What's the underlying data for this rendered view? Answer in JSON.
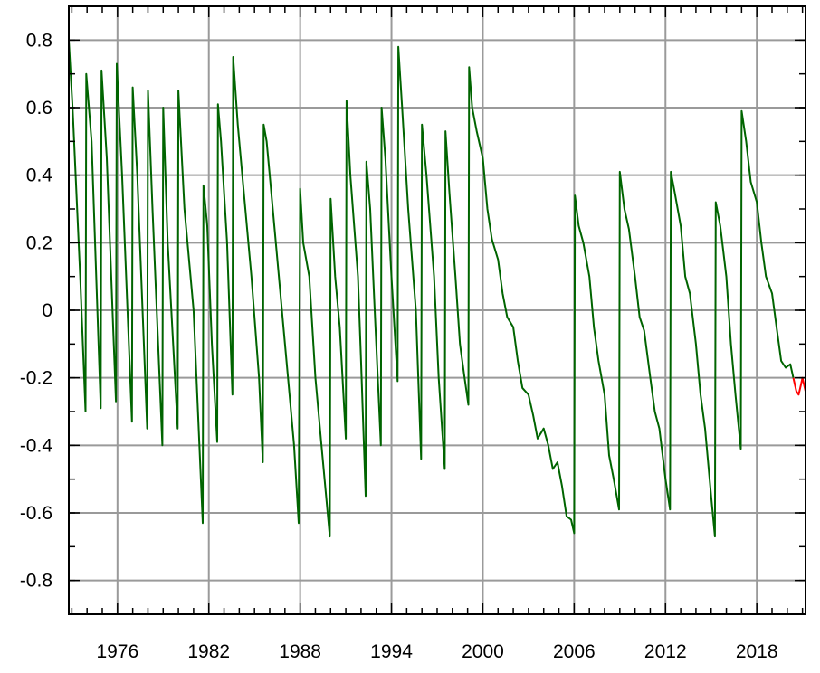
{
  "chart_data": {
    "type": "line",
    "title": "",
    "xlabel": "",
    "ylabel": "",
    "xlim": [
      1972.8,
      2021.2
    ],
    "ylim": [
      -0.9,
      0.9
    ],
    "x_ticks": [
      1976,
      1982,
      1988,
      1994,
      2000,
      2006,
      2012,
      2018
    ],
    "x_tick_labels": [
      "1976",
      "1982",
      "1988",
      "1994",
      "2000",
      "2006",
      "2012",
      "2018"
    ],
    "y_ticks": [
      0.8,
      0.6,
      0.4,
      0.2,
      0,
      -0.2,
      -0.4,
      -0.6,
      -0.8
    ],
    "y_tick_labels": [
      "0.8",
      "0.6",
      "0.4",
      "0.2",
      "0",
      "-0.2",
      "-0.4",
      "-0.6",
      "-0.8"
    ],
    "grid": true,
    "legend": "none",
    "series": [
      {
        "color": "#006400",
        "points": [
          [
            1972.8,
            0.8
          ],
          [
            1973.05,
            0.6
          ],
          [
            1973.55,
            0.1
          ],
          [
            1973.9,
            -0.3
          ],
          [
            1973.95,
            0.7
          ],
          [
            1974.3,
            0.5
          ],
          [
            1974.9,
            -0.29
          ],
          [
            1974.95,
            0.71
          ],
          [
            1975.3,
            0.45
          ],
          [
            1975.9,
            -0.27
          ],
          [
            1975.95,
            0.73
          ],
          [
            1976.3,
            0.4
          ],
          [
            1976.95,
            -0.33
          ],
          [
            1977.0,
            0.66
          ],
          [
            1977.3,
            0.4
          ],
          [
            1977.95,
            -0.35
          ],
          [
            1978.0,
            0.65
          ],
          [
            1978.3,
            0.3
          ],
          [
            1978.95,
            -0.4
          ],
          [
            1979.0,
            0.6
          ],
          [
            1979.3,
            0.2
          ],
          [
            1979.95,
            -0.35
          ],
          [
            1980.0,
            0.65
          ],
          [
            1980.4,
            0.3
          ],
          [
            1981.0,
            0.0
          ],
          [
            1981.6,
            -0.63
          ],
          [
            1981.65,
            0.37
          ],
          [
            1981.9,
            0.25
          ],
          [
            1982.2,
            -0.1
          ],
          [
            1982.55,
            -0.39
          ],
          [
            1982.6,
            0.61
          ],
          [
            1982.8,
            0.5
          ],
          [
            1983.2,
            0.2
          ],
          [
            1983.55,
            -0.25
          ],
          [
            1983.6,
            0.75
          ],
          [
            1983.9,
            0.55
          ],
          [
            1984.2,
            0.4
          ],
          [
            1984.8,
            0.1
          ],
          [
            1985.3,
            -0.2
          ],
          [
            1985.55,
            -0.45
          ],
          [
            1985.6,
            0.55
          ],
          [
            1985.8,
            0.5
          ],
          [
            1986.2,
            0.3
          ],
          [
            1986.8,
            0.0
          ],
          [
            1987.3,
            -0.25
          ],
          [
            1987.6,
            -0.4
          ],
          [
            1987.9,
            -0.63
          ],
          [
            1988.0,
            0.36
          ],
          [
            1988.2,
            0.2
          ],
          [
            1988.6,
            0.1
          ],
          [
            1989.0,
            -0.2
          ],
          [
            1989.4,
            -0.4
          ],
          [
            1989.95,
            -0.67
          ],
          [
            1990.0,
            0.33
          ],
          [
            1990.3,
            0.1
          ],
          [
            1990.6,
            -0.05
          ],
          [
            1991.0,
            -0.38
          ],
          [
            1991.05,
            0.62
          ],
          [
            1991.3,
            0.4
          ],
          [
            1991.8,
            0.1
          ],
          [
            1992.0,
            -0.15
          ],
          [
            1992.3,
            -0.55
          ],
          [
            1992.35,
            0.44
          ],
          [
            1992.6,
            0.3
          ],
          [
            1992.9,
            0.0
          ],
          [
            1993.3,
            -0.4
          ],
          [
            1993.35,
            0.6
          ],
          [
            1993.6,
            0.45
          ],
          [
            1994.0,
            0.1
          ],
          [
            1994.4,
            -0.21
          ],
          [
            1994.45,
            0.78
          ],
          [
            1994.7,
            0.6
          ],
          [
            1995.1,
            0.3
          ],
          [
            1995.6,
            0.0
          ],
          [
            1995.95,
            -0.44
          ],
          [
            1996.0,
            0.55
          ],
          [
            1996.3,
            0.4
          ],
          [
            1996.8,
            0.1
          ],
          [
            1997.1,
            -0.2
          ],
          [
            1997.5,
            -0.47
          ],
          [
            1997.55,
            0.53
          ],
          [
            1997.8,
            0.35
          ],
          [
            1998.2,
            0.1
          ],
          [
            1998.5,
            -0.1
          ],
          [
            1998.8,
            -0.2
          ],
          [
            1999.05,
            -0.28
          ],
          [
            1999.1,
            0.72
          ],
          [
            1999.3,
            0.6
          ],
          [
            1999.6,
            0.53
          ],
          [
            2000.0,
            0.45
          ],
          [
            2000.3,
            0.3
          ],
          [
            2000.6,
            0.21
          ],
          [
            2001.0,
            0.15
          ],
          [
            2001.3,
            0.05
          ],
          [
            2001.6,
            -0.02
          ],
          [
            2002.0,
            -0.05
          ],
          [
            2002.3,
            -0.15
          ],
          [
            2002.6,
            -0.23
          ],
          [
            2003.0,
            -0.25
          ],
          [
            2003.3,
            -0.31
          ],
          [
            2003.6,
            -0.38
          ],
          [
            2004.0,
            -0.35
          ],
          [
            2004.3,
            -0.4
          ],
          [
            2004.6,
            -0.47
          ],
          [
            2004.9,
            -0.45
          ],
          [
            2005.2,
            -0.52
          ],
          [
            2005.5,
            -0.61
          ],
          [
            2005.8,
            -0.62
          ],
          [
            2006.0,
            -0.66
          ],
          [
            2006.05,
            0.34
          ],
          [
            2006.3,
            0.25
          ],
          [
            2006.6,
            0.2
          ],
          [
            2007.0,
            0.1
          ],
          [
            2007.3,
            -0.05
          ],
          [
            2007.6,
            -0.15
          ],
          [
            2008.0,
            -0.25
          ],
          [
            2008.3,
            -0.43
          ],
          [
            2008.6,
            -0.5
          ],
          [
            2008.95,
            -0.59
          ],
          [
            2009.0,
            0.41
          ],
          [
            2009.3,
            0.3
          ],
          [
            2009.6,
            0.24
          ],
          [
            2010.0,
            0.1
          ],
          [
            2010.3,
            -0.02
          ],
          [
            2010.6,
            -0.06
          ],
          [
            2011.0,
            -0.2
          ],
          [
            2011.3,
            -0.3
          ],
          [
            2011.6,
            -0.35
          ],
          [
            2012.0,
            -0.5
          ],
          [
            2012.3,
            -0.59
          ],
          [
            2012.35,
            0.41
          ],
          [
            2012.6,
            0.35
          ],
          [
            2013.0,
            0.25
          ],
          [
            2013.3,
            0.1
          ],
          [
            2013.6,
            0.05
          ],
          [
            2014.0,
            -0.1
          ],
          [
            2014.3,
            -0.25
          ],
          [
            2014.6,
            -0.35
          ],
          [
            2015.0,
            -0.55
          ],
          [
            2015.25,
            -0.67
          ],
          [
            2015.3,
            0.32
          ],
          [
            2015.6,
            0.25
          ],
          [
            2016.0,
            0.1
          ],
          [
            2016.3,
            -0.1
          ],
          [
            2016.6,
            -0.25
          ],
          [
            2016.95,
            -0.41
          ],
          [
            2017.0,
            0.59
          ],
          [
            2017.3,
            0.5
          ],
          [
            2017.6,
            0.38
          ],
          [
            2018.0,
            0.32
          ],
          [
            2018.3,
            0.2
          ],
          [
            2018.6,
            0.1
          ],
          [
            2019.0,
            0.05
          ],
          [
            2019.3,
            -0.05
          ],
          [
            2019.6,
            -0.15
          ],
          [
            2019.9,
            -0.17
          ],
          [
            2020.2,
            -0.16
          ],
          [
            2020.4,
            -0.2
          ]
        ]
      },
      {
        "color": "#ff0000",
        "points": [
          [
            2020.4,
            -0.2
          ],
          [
            2020.6,
            -0.24
          ],
          [
            2020.75,
            -0.25
          ],
          [
            2020.9,
            -0.22
          ],
          [
            2021.0,
            -0.2
          ],
          [
            2021.1,
            -0.22
          ],
          [
            2021.2,
            -0.24
          ]
        ]
      }
    ]
  }
}
